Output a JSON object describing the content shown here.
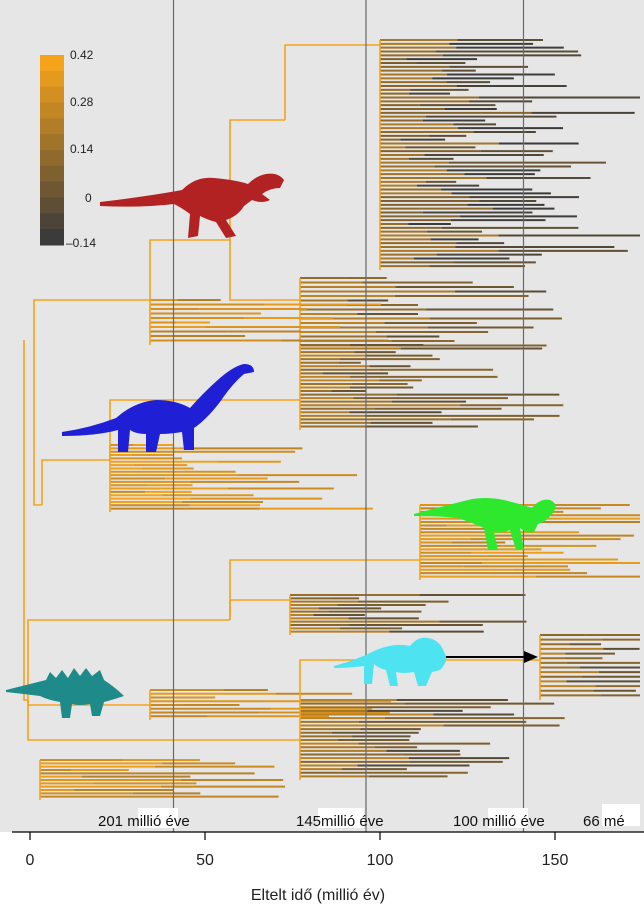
{
  "chart_data": {
    "type": "phylogenetic-tree",
    "xlabel": "Eltelt idő (millió év)",
    "xlim": [
      -5,
      175
    ],
    "x_ticks": [
      0,
      50,
      100,
      150
    ],
    "tick_labels": [
      "0",
      "50",
      "100",
      "150"
    ],
    "era_lines": [
      {
        "x": 41,
        "label": "201 millió éve"
      },
      {
        "x": 96,
        "label": "145millió éve"
      },
      {
        "x": 141,
        "label": "100 millió éve"
      },
      {
        "x": 175,
        "label": "66 mé"
      }
    ],
    "color_scale": {
      "ticks": [
        "0.42",
        "0.28",
        "0.14",
        "0",
        "–0.14"
      ],
      "range": [
        -0.14,
        0.42
      ],
      "high_color": "#f5a31a",
      "low_color": "#3b3b3b"
    },
    "clades": [
      {
        "icon": "theropod-silhouette-icon",
        "color": "#b22222"
      },
      {
        "icon": "sauropod-silhouette-icon",
        "color": "#1f1fd6"
      },
      {
        "icon": "hadrosaur-silhouette-icon",
        "color": "#2ee82e"
      },
      {
        "icon": "ceratopsian-silhouette-icon",
        "color": "#4de3f0"
      },
      {
        "icon": "stegosaur-silhouette-icon",
        "color": "#1f8a8a"
      }
    ],
    "grid": false,
    "background": "#e6e6e6"
  }
}
